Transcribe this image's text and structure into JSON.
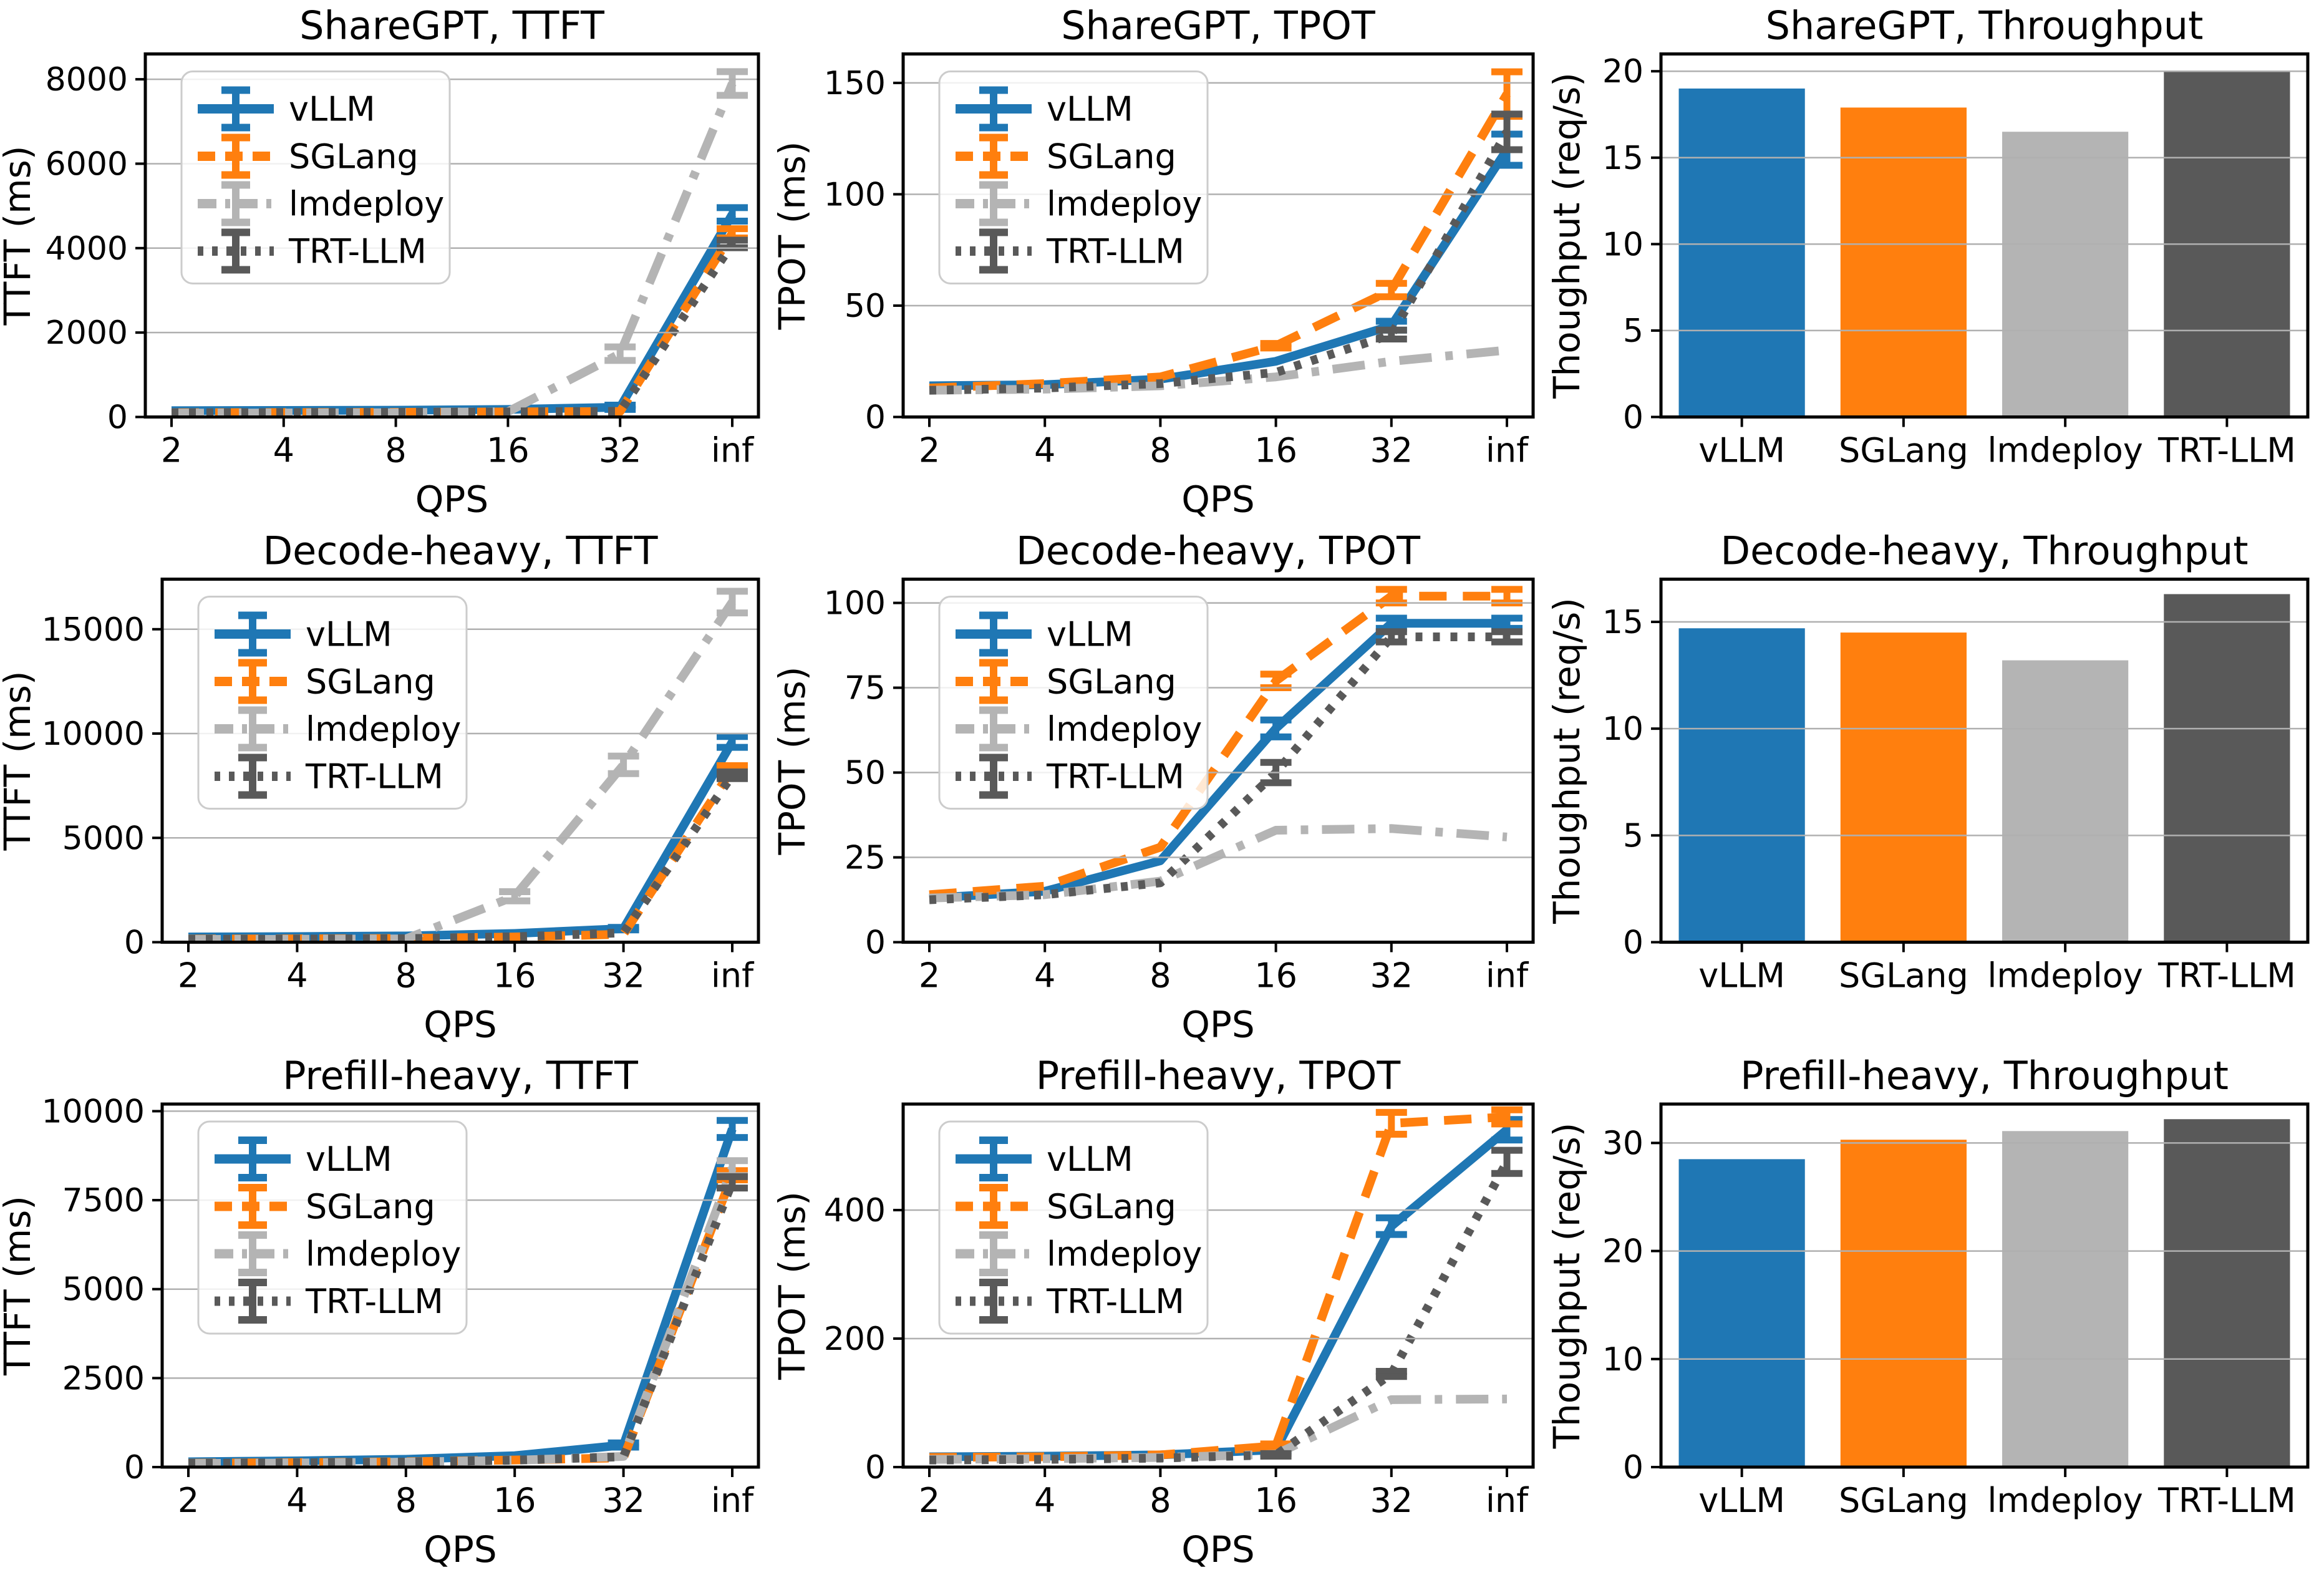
{
  "figure": {
    "background": "#ffffff",
    "grid_color": "#b0b0b0",
    "spine_color": "#000000",
    "text_color": "#000000",
    "legend_border_color": "#cccccc",
    "legend_fill": "#ffffff"
  },
  "colors": {
    "vLLM": "#1f77b4",
    "SGLang": "#ff7f0e",
    "lmdeploy": "#b4b4b4",
    "TRT-LLM": "#595959"
  },
  "line_styles": {
    "vLLM": "solid",
    "SGLang": "dashed",
    "lmdeploy": "dashdot",
    "TRT-LLM": "dotted"
  },
  "series_names": [
    "vLLM",
    "SGLang",
    "lmdeploy",
    "TRT-LLM"
  ],
  "chart_data": [
    {
      "type": "line",
      "title": "ShareGPT, TTFT",
      "xlabel": "QPS",
      "ylabel": "TTFT (ms)",
      "x_scale": "log2-with-inf",
      "x_ticklabels": [
        "2",
        "4",
        "8",
        "16",
        "32",
        "inf"
      ],
      "yticks": [
        0,
        2000,
        4000,
        6000,
        8000
      ],
      "ylim": [
        0,
        8600
      ],
      "grid": "horizontal",
      "legend": [
        "vLLM",
        "SGLang",
        "lmdeploy",
        "TRT-LLM"
      ],
      "legend_position": "upper-left",
      "series": [
        {
          "name": "vLLM",
          "values": [
            150,
            155,
            160,
            180,
            230,
            4800
          ],
          "err": [
            0,
            0,
            0,
            0,
            50,
            160
          ]
        },
        {
          "name": "SGLang",
          "values": [
            100,
            105,
            110,
            120,
            130,
            4350
          ],
          "err": [
            0,
            0,
            0,
            0,
            0,
            110
          ]
        },
        {
          "name": "lmdeploy",
          "values": [
            90,
            95,
            100,
            125,
            1500,
            7900
          ],
          "err": [
            0,
            0,
            0,
            0,
            160,
            280
          ]
        },
        {
          "name": "TRT-LLM",
          "values": [
            100,
            105,
            110,
            120,
            135,
            4100
          ],
          "err": [
            0,
            0,
            0,
            0,
            0,
            90
          ]
        }
      ]
    },
    {
      "type": "line",
      "title": "ShareGPT, TPOT",
      "xlabel": "QPS",
      "ylabel": "TPOT (ms)",
      "x_scale": "log2-with-inf",
      "x_ticklabels": [
        "2",
        "4",
        "8",
        "16",
        "32",
        "inf"
      ],
      "yticks": [
        0,
        50,
        100,
        150
      ],
      "ylim": [
        0,
        163
      ],
      "grid": "horizontal",
      "legend": [
        "vLLM",
        "SGLang",
        "lmdeploy",
        "TRT-LLM"
      ],
      "legend_position": "upper-left",
      "series": [
        {
          "name": "vLLM",
          "values": [
            14,
            14.5,
            17,
            25,
            41,
            120
          ],
          "err": [
            0,
            0,
            0,
            0,
            2,
            7
          ]
        },
        {
          "name": "SGLang",
          "values": [
            13,
            15,
            18,
            32,
            57,
            145
          ],
          "err": [
            0,
            0,
            0,
            1,
            3,
            10
          ]
        },
        {
          "name": "lmdeploy",
          "values": [
            12,
            12.5,
            14,
            18,
            25,
            30
          ],
          "err": [
            0,
            0,
            0,
            0,
            0,
            0
          ]
        },
        {
          "name": "TRT-LLM",
          "values": [
            12,
            13,
            15,
            20,
            37,
            128
          ],
          "err": [
            0,
            0,
            0,
            0,
            2,
            8
          ]
        }
      ]
    },
    {
      "type": "bar",
      "title": "ShareGPT, Throughput",
      "xlabel": "",
      "ylabel": "Thoughput (req/s)",
      "categories": [
        "vLLM",
        "SGLang",
        "lmdeploy",
        "TRT-LLM"
      ],
      "values": [
        19.0,
        17.9,
        16.5,
        20.0
      ],
      "yticks": [
        0,
        5,
        10,
        15,
        20
      ],
      "ylim": [
        0,
        21
      ],
      "grid": "horizontal"
    },
    {
      "type": "line",
      "title": "Decode-heavy, TTFT",
      "xlabel": "QPS",
      "ylabel": "TTFT (ms)",
      "x_scale": "log2-with-inf",
      "x_ticklabels": [
        "2",
        "4",
        "8",
        "16",
        "32",
        "inf"
      ],
      "yticks": [
        0,
        5000,
        10000,
        15000
      ],
      "ylim": [
        0,
        17400
      ],
      "grid": "horizontal",
      "legend": [
        "vLLM",
        "SGLang",
        "lmdeploy",
        "TRT-LLM"
      ],
      "legend_position": "upper-left",
      "series": [
        {
          "name": "vLLM",
          "values": [
            250,
            270,
            300,
            420,
            650,
            9600
          ],
          "err": [
            0,
            0,
            0,
            0,
            60,
            260
          ]
        },
        {
          "name": "SGLang",
          "values": [
            150,
            160,
            180,
            250,
            380,
            8300
          ],
          "err": [
            0,
            0,
            0,
            0,
            0,
            160
          ]
        },
        {
          "name": "lmdeploy",
          "values": [
            130,
            140,
            160,
            2200,
            8500,
            16300
          ],
          "err": [
            0,
            0,
            0,
            220,
            420,
            520
          ]
        },
        {
          "name": "TRT-LLM",
          "values": [
            140,
            150,
            170,
            260,
            450,
            8000
          ],
          "err": [
            0,
            0,
            0,
            0,
            0,
            160
          ]
        }
      ]
    },
    {
      "type": "line",
      "title": "Decode-heavy, TPOT",
      "xlabel": "QPS",
      "ylabel": "TPOT (ms)",
      "x_scale": "log2-with-inf",
      "x_ticklabels": [
        "2",
        "4",
        "8",
        "16",
        "32",
        "inf"
      ],
      "yticks": [
        0,
        25,
        50,
        75,
        100
      ],
      "ylim": [
        0,
        107
      ],
      "grid": "horizontal",
      "legend": [
        "vLLM",
        "SGLang",
        "lmdeploy",
        "TRT-LLM"
      ],
      "legend_position": "upper-left",
      "series": [
        {
          "name": "vLLM",
          "values": [
            13,
            15,
            24,
            63,
            94,
            94
          ],
          "err": [
            0,
            0,
            0,
            2.5,
            1.5,
            1.5
          ]
        },
        {
          "name": "SGLang",
          "values": [
            14,
            16.5,
            28,
            77,
            102,
            102
          ],
          "err": [
            0,
            0,
            0,
            2,
            2,
            2
          ]
        },
        {
          "name": "lmdeploy",
          "values": [
            13,
            14,
            18,
            33,
            33.5,
            31
          ],
          "err": [
            0,
            0,
            0,
            0,
            0,
            0
          ]
        },
        {
          "name": "TRT-LLM",
          "values": [
            12.5,
            14,
            17.5,
            50,
            90,
            90
          ],
          "err": [
            0,
            0,
            0,
            3,
            1.5,
            1.5
          ]
        }
      ]
    },
    {
      "type": "bar",
      "title": "Decode-heavy, Throughput",
      "xlabel": "",
      "ylabel": "Thoughput (req/s)",
      "categories": [
        "vLLM",
        "SGLang",
        "lmdeploy",
        "TRT-LLM"
      ],
      "values": [
        14.7,
        14.5,
        13.2,
        16.3
      ],
      "yticks": [
        0,
        5,
        10,
        15
      ],
      "ylim": [
        0,
        17
      ],
      "grid": "horizontal"
    },
    {
      "type": "line",
      "title": "Prefill-heavy, TTFT",
      "xlabel": "QPS",
      "ylabel": "TTFT (ms)",
      "x_scale": "log2-with-inf",
      "x_ticklabels": [
        "2",
        "4",
        "8",
        "16",
        "32",
        "inf"
      ],
      "yticks": [
        0,
        2500,
        5000,
        7500,
        10000
      ],
      "ylim": [
        0,
        10200
      ],
      "grid": "horizontal",
      "legend": [
        "vLLM",
        "SGLang",
        "lmdeploy",
        "TRT-LLM"
      ],
      "legend_position": "upper-left",
      "series": [
        {
          "name": "vLLM",
          "values": [
            150,
            175,
            220,
            320,
            620,
            9500
          ],
          "err": [
            0,
            0,
            0,
            0,
            60,
            240
          ]
        },
        {
          "name": "SGLang",
          "values": [
            110,
            125,
            150,
            200,
            260,
            8200
          ],
          "err": [
            0,
            0,
            0,
            0,
            0,
            130
          ]
        },
        {
          "name": "lmdeploy",
          "values": [
            100,
            115,
            140,
            190,
            300,
            8400
          ],
          "err": [
            0,
            0,
            0,
            0,
            0,
            210
          ]
        },
        {
          "name": "TRT-LLM",
          "values": [
            105,
            120,
            145,
            195,
            290,
            8000
          ],
          "err": [
            0,
            0,
            0,
            0,
            0,
            160
          ]
        }
      ]
    },
    {
      "type": "line",
      "title": "Prefill-heavy, TPOT",
      "xlabel": "QPS",
      "ylabel": "TPOT (ms)",
      "x_scale": "log2-with-inf",
      "x_ticklabels": [
        "2",
        "4",
        "8",
        "16",
        "32",
        "inf"
      ],
      "yticks": [
        0,
        200,
        400
      ],
      "ylim": [
        0,
        565
      ],
      "grid": "horizontal",
      "legend": [
        "vLLM",
        "SGLang",
        "lmdeploy",
        "TRT-LLM"
      ],
      "legend_position": "upper-left",
      "series": [
        {
          "name": "vLLM",
          "values": [
            16,
            17,
            19,
            27,
            375,
            525
          ],
          "err": [
            0,
            0,
            0,
            2,
            13,
            16
          ]
        },
        {
          "name": "SGLang",
          "values": [
            15,
            16,
            19,
            33,
            535,
            545
          ],
          "err": [
            0,
            0,
            0,
            3,
            17,
            11
          ]
        },
        {
          "name": "lmdeploy",
          "values": [
            12,
            13,
            15,
            20,
            105,
            106
          ],
          "err": [
            0,
            0,
            0,
            0,
            0,
            0
          ]
        },
        {
          "name": "TRT-LLM",
          "values": [
            11,
            12,
            14,
            19,
            145,
            475
          ],
          "err": [
            0,
            0,
            0,
            2,
            4,
            18
          ]
        }
      ]
    },
    {
      "type": "bar",
      "title": "Prefill-heavy, Throughput",
      "xlabel": "",
      "ylabel": "Thoughput (req/s)",
      "categories": [
        "vLLM",
        "SGLang",
        "lmdeploy",
        "TRT-LLM"
      ],
      "values": [
        28.5,
        30.3,
        31.1,
        32.2
      ],
      "yticks": [
        0,
        10,
        20,
        30
      ],
      "ylim": [
        0,
        33.6
      ],
      "grid": "horizontal"
    }
  ]
}
